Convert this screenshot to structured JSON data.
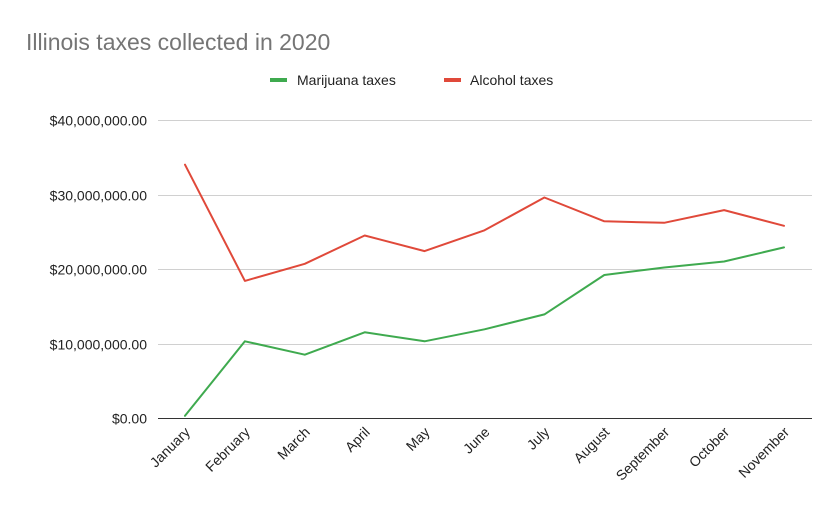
{
  "chart_data": {
    "type": "line",
    "title": "Illinois taxes collected in 2020",
    "xlabel": "",
    "ylabel": "",
    "categories": [
      "January",
      "February",
      "March",
      "April",
      "May",
      "June",
      "July",
      "August",
      "September",
      "October",
      "November"
    ],
    "series": [
      {
        "name": "Marijuana taxes",
        "color": "#3faa4f",
        "values": [
          300000,
          10300000,
          8500000,
          11500000,
          10300000,
          11900000,
          13900000,
          19200000,
          20200000,
          21000000,
          22900000
        ]
      },
      {
        "name": "Alcohol taxes",
        "color": "#e0493a",
        "values": [
          34000000,
          18400000,
          20700000,
          24500000,
          22400000,
          25200000,
          29600000,
          26400000,
          26200000,
          27900000,
          25800000
        ]
      }
    ],
    "ylim": [
      0,
      40000000
    ],
    "yticks": [
      0,
      10000000,
      20000000,
      30000000,
      40000000
    ],
    "ytick_labels": [
      "$0.00",
      "$10,000,000.00",
      "$20,000,000.00",
      "$30,000,000.00",
      "$40,000,000.00"
    ],
    "grid": true,
    "legend_position": "top"
  }
}
